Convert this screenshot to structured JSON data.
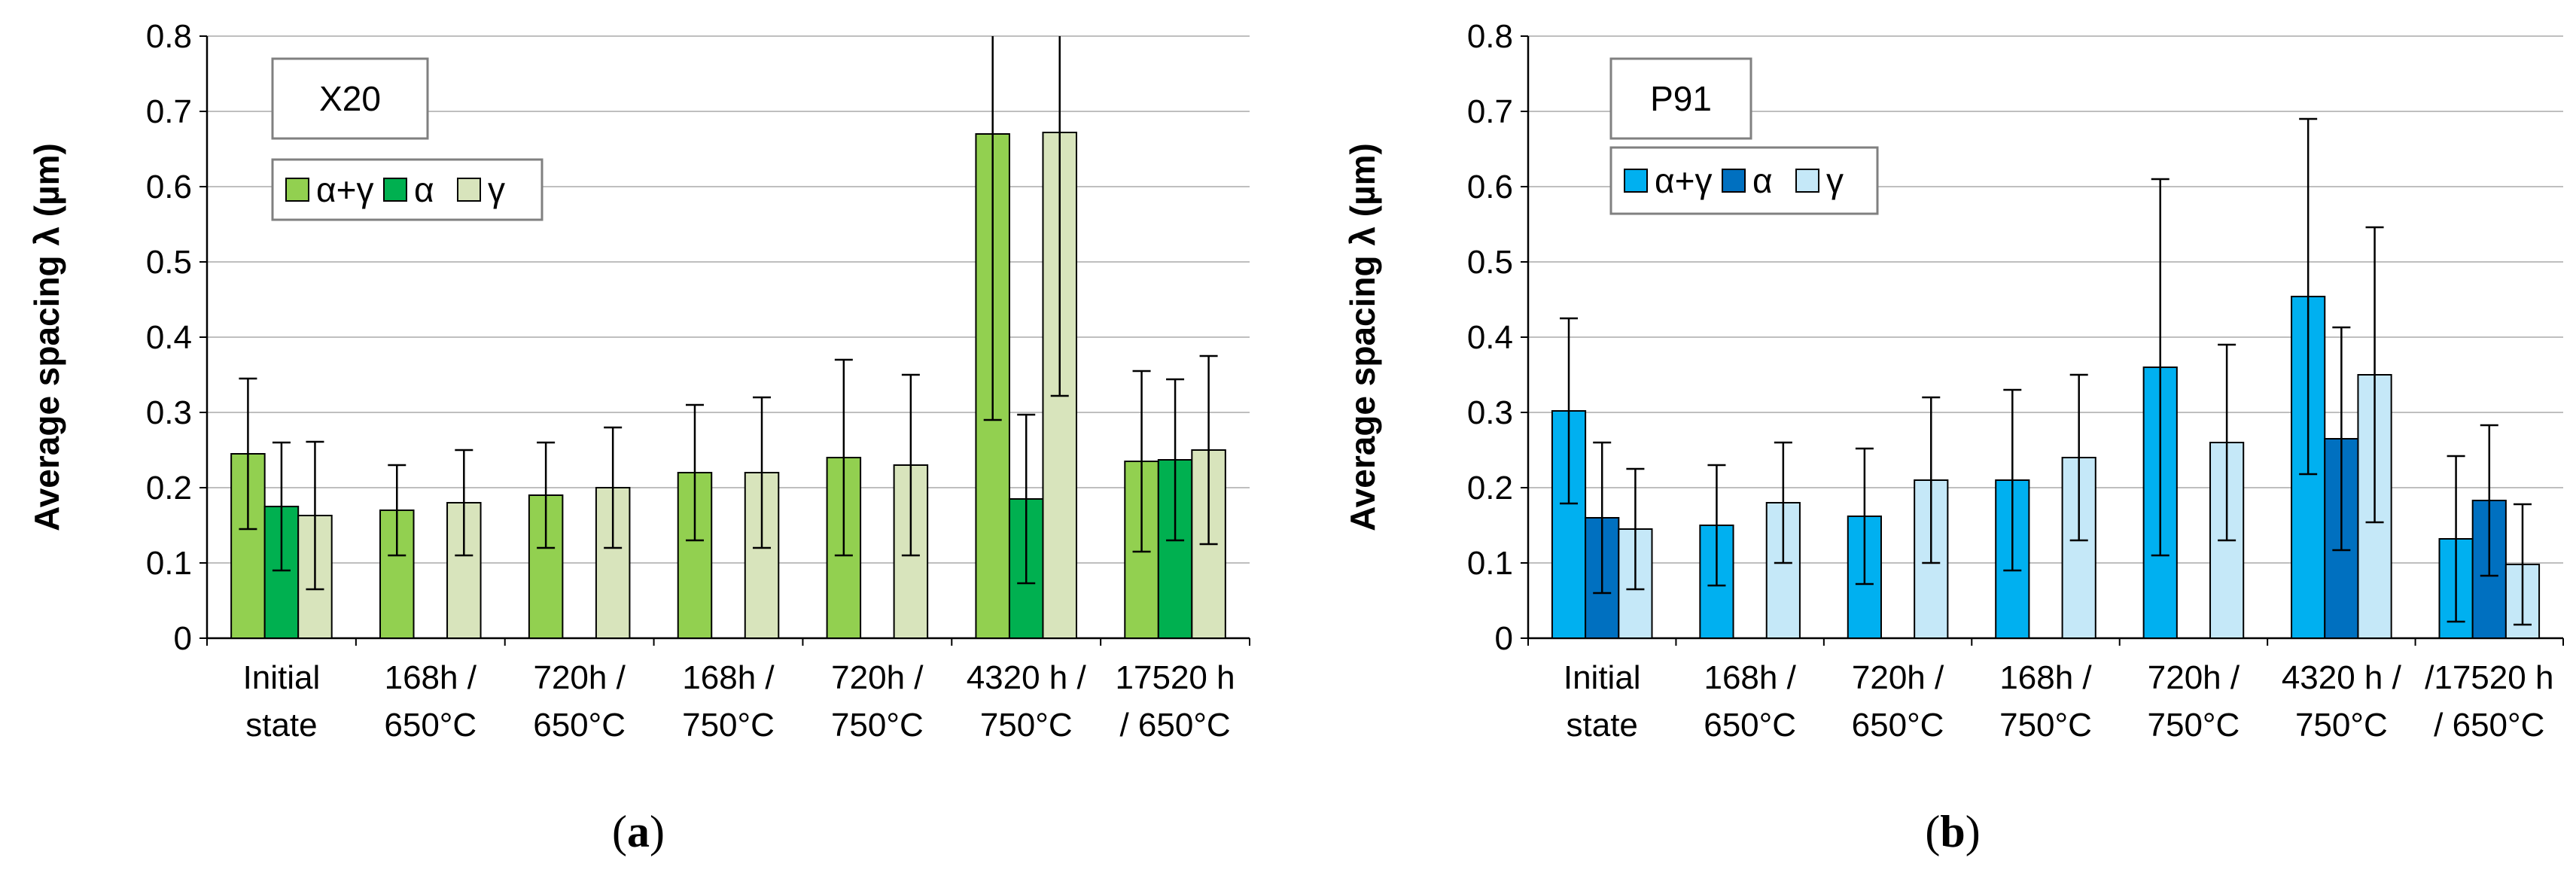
{
  "chart_data": [
    {
      "type": "bar",
      "title": "X20",
      "panel_label": "a",
      "ylabel": "Average spacing λ (µm)",
      "ylim": [
        0,
        0.8
      ],
      "yticks": [
        "0",
        "0.1",
        "0.2",
        "0.3",
        "0.4",
        "0.5",
        "0.6",
        "0.7",
        "0.8"
      ],
      "grid": true,
      "legend_position": "top-left",
      "categories": [
        [
          "Initial",
          "state"
        ],
        [
          "168h /",
          "650°C"
        ],
        [
          "720h /",
          "650°C"
        ],
        [
          "168h /",
          "750°C"
        ],
        [
          "720h /",
          "750°C"
        ],
        [
          "4320 h /",
          "750°C"
        ],
        [
          "17520 h",
          "/ 650°C"
        ]
      ],
      "series": [
        {
          "name": "α+γ",
          "color": "#92D050",
          "values": [
            0.245,
            0.17,
            0.19,
            0.22,
            0.24,
            0.67,
            0.235
          ],
          "errors": [
            0.1,
            0.06,
            0.07,
            0.09,
            0.13,
            0.38,
            0.12
          ]
        },
        {
          "name": "α",
          "color": "#00B050",
          "values": [
            0.175,
            null,
            null,
            null,
            null,
            0.185,
            0.237
          ],
          "errors": [
            0.085,
            null,
            null,
            null,
            null,
            0.112,
            0.107
          ]
        },
        {
          "name": "γ",
          "color": "#D8E4BC",
          "values": [
            0.163,
            0.18,
            0.2,
            0.22,
            0.23,
            0.672,
            0.25
          ],
          "errors": [
            0.098,
            0.07,
            0.08,
            0.1,
            0.12,
            0.35,
            0.125
          ]
        }
      ]
    },
    {
      "type": "bar",
      "title": "P91",
      "panel_label": "b",
      "ylabel": "Average spacing λ (µm)",
      "ylim": [
        0,
        0.8
      ],
      "yticks": [
        "0",
        "0.1",
        "0.2",
        "0.3",
        "0.4",
        "0.5",
        "0.6",
        "0.7",
        "0.8"
      ],
      "grid": true,
      "legend_position": "top-left",
      "categories": [
        [
          "Initial",
          "state"
        ],
        [
          "168h /",
          "650°C"
        ],
        [
          "720h /",
          "650°C"
        ],
        [
          "168h /",
          "750°C"
        ],
        [
          "720h /",
          "750°C"
        ],
        [
          "4320 h /",
          "750°C"
        ],
        [
          "/17520 h",
          "/ 650°C"
        ]
      ],
      "series": [
        {
          "name": "α+γ",
          "color": "#00B0F0",
          "values": [
            0.302,
            0.15,
            0.162,
            0.21,
            0.36,
            0.454,
            0.132
          ],
          "errors": [
            0.123,
            0.08,
            0.09,
            0.12,
            0.25,
            0.236,
            0.11
          ]
        },
        {
          "name": "α",
          "color": "#0070C0",
          "values": [
            0.16,
            null,
            null,
            null,
            null,
            0.265,
            0.183
          ],
          "errors": [
            0.1,
            null,
            null,
            null,
            null,
            0.148,
            0.1
          ]
        },
        {
          "name": "γ",
          "color": "#C5E8F8",
          "values": [
            0.145,
            0.18,
            0.21,
            0.24,
            0.26,
            0.35,
            0.098
          ],
          "errors": [
            0.08,
            0.08,
            0.11,
            0.11,
            0.13,
            0.196,
            0.08
          ]
        }
      ]
    }
  ]
}
